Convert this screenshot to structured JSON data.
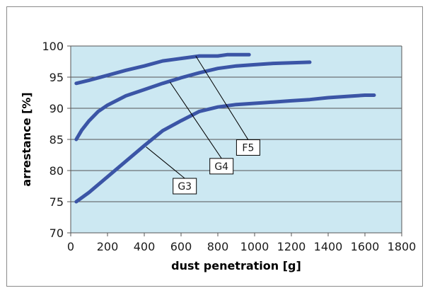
{
  "chart_data": {
    "type": "line",
    "xlabel": "dust penetration [g]",
    "ylabel": "arrestance [%]",
    "xlim": [
      0,
      1800
    ],
    "ylim": [
      70,
      100
    ],
    "x_ticks": [
      0,
      200,
      400,
      600,
      800,
      1000,
      1200,
      1400,
      1600,
      1800
    ],
    "y_ticks": [
      70,
      75,
      80,
      85,
      90,
      95,
      100
    ],
    "grid": "horizontal",
    "plot_background": "#cce8f2",
    "series_color": "#3b55a6",
    "series": [
      {
        "name": "F5",
        "x": [
          30,
          100,
          200,
          300,
          400,
          500,
          600,
          700,
          800,
          850,
          900,
          970
        ],
        "y": [
          94.0,
          94.5,
          95.3,
          96.1,
          96.8,
          97.6,
          98.0,
          98.4,
          98.4,
          98.6,
          98.6,
          98.6
        ]
      },
      {
        "name": "G4",
        "x": [
          30,
          60,
          100,
          150,
          200,
          300,
          400,
          500,
          600,
          700,
          800,
          900,
          1000,
          1100,
          1200,
          1300
        ],
        "y": [
          85.0,
          86.5,
          88.0,
          89.5,
          90.5,
          92.0,
          93.0,
          94.0,
          94.9,
          95.7,
          96.4,
          96.8,
          97.0,
          97.2,
          97.3,
          97.4
        ]
      },
      {
        "name": "G3",
        "x": [
          30,
          100,
          200,
          300,
          400,
          500,
          600,
          700,
          800,
          900,
          1000,
          1100,
          1200,
          1300,
          1400,
          1500,
          1600,
          1650
        ],
        "y": [
          75.0,
          76.5,
          79.0,
          81.5,
          84.0,
          86.4,
          88.0,
          89.5,
          90.2,
          90.6,
          90.8,
          91.0,
          91.2,
          91.4,
          91.7,
          91.9,
          92.1,
          92.1
        ]
      }
    ],
    "annotations": [
      {
        "label": "F5",
        "point": [
          680,
          98.4
        ],
        "box": [
          965,
          83.7
        ]
      },
      {
        "label": "G4",
        "point": [
          540,
          94.2
        ],
        "box": [
          820,
          80.7
        ]
      },
      {
        "label": "G3",
        "point": [
          410,
          83.8
        ],
        "box": [
          620,
          77.5
        ]
      }
    ]
  }
}
